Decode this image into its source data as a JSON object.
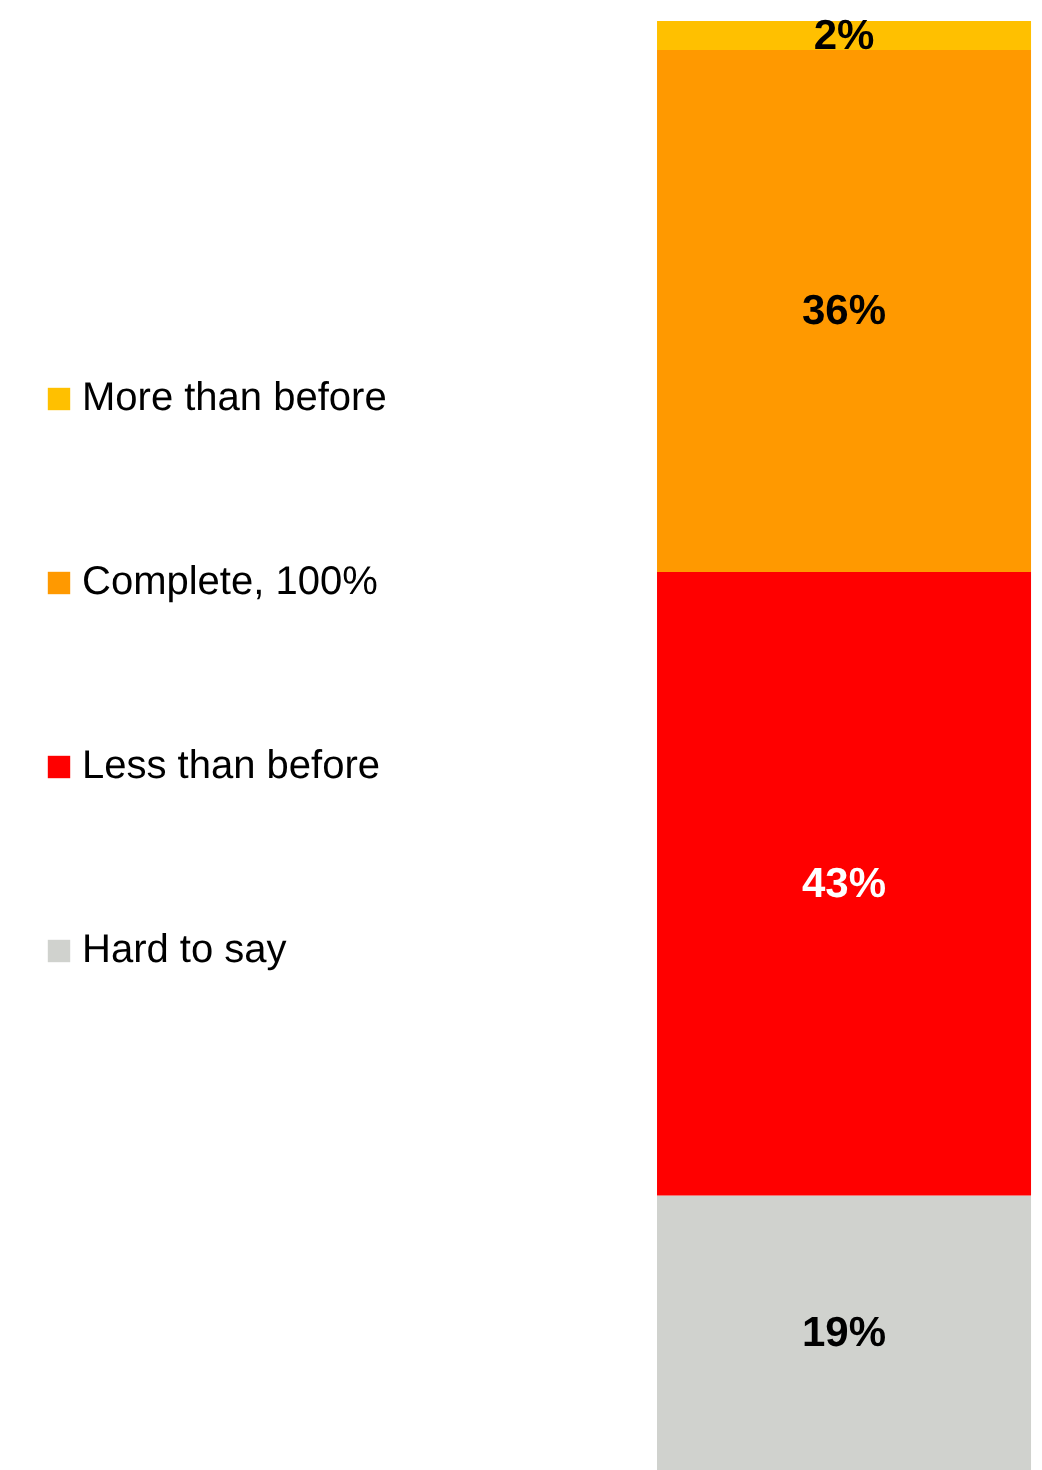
{
  "chart_data": {
    "type": "bar",
    "stacked": true,
    "categories": [
      null
    ],
    "tick_labels": false,
    "legend": "left",
    "series": [
      {
        "name": "Hard to say",
        "color": "#d0d2ce",
        "values": [
          19
        ],
        "value_labels": [
          "19%"
        ]
      },
      {
        "name": "Less than before",
        "color": "#ff0000",
        "values": [
          43
        ],
        "value_labels": [
          "43%"
        ]
      },
      {
        "name": "Complete, 100%",
        "color": "#ff9900",
        "values": [
          36
        ],
        "value_labels": [
          "36%"
        ]
      },
      {
        "name": "More than before",
        "color": "#ffc000",
        "values": [
          2
        ],
        "value_labels": [
          "2%"
        ]
      }
    ]
  }
}
